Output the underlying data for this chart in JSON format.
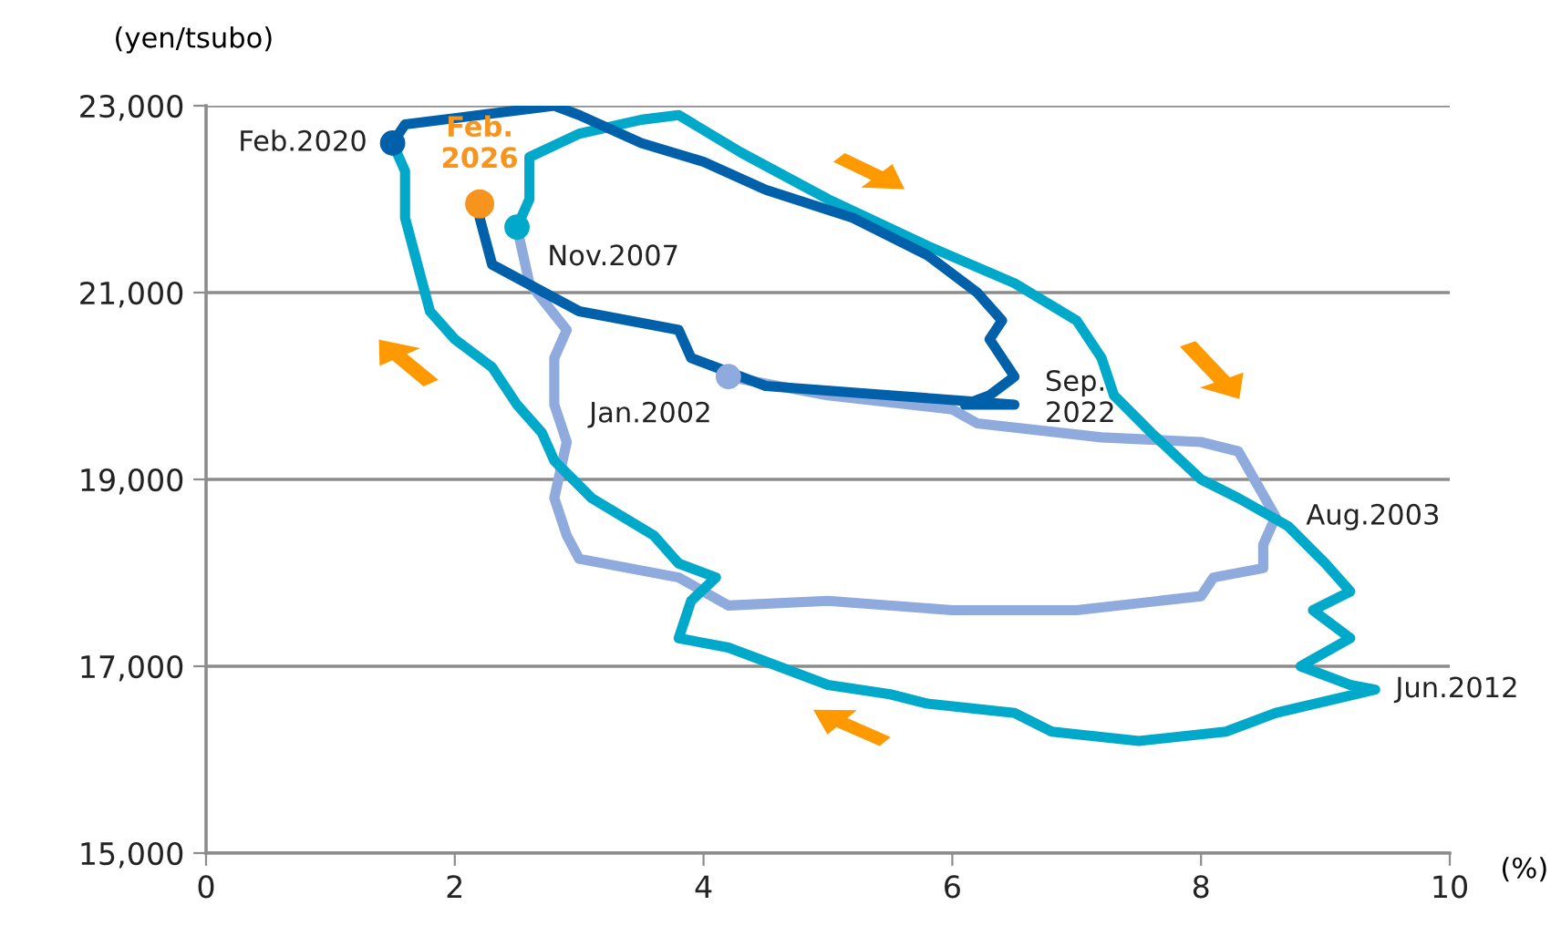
{
  "chart_data": {
    "type": "line",
    "xlabel": "(%)",
    "ylabel": "(yen/tsubo)",
    "xlim": [
      0,
      10
    ],
    "xticks": [
      0,
      2,
      4,
      6,
      8,
      10
    ],
    "ylim": [
      15000,
      23000
    ],
    "yticks": [
      {
        "value": 15000,
        "label": "15,000"
      },
      {
        "value": 17000,
        "label": "17,000"
      },
      {
        "value": 19000,
        "label": "19,000"
      },
      {
        "value": 21000,
        "label": "21,000"
      },
      {
        "value": 23000,
        "label": "23,000"
      }
    ],
    "grid": "y",
    "line_style": "solid",
    "series": [
      {
        "color": "#8faadc",
        "x": [
          4.2,
          5.0,
          6.0,
          6.2,
          7.2,
          8.0,
          8.3,
          8.6,
          8.5,
          8.5,
          8.1,
          8.0,
          7.0,
          6.0,
          5.0,
          4.2,
          3.8,
          3.0,
          2.9,
          2.8,
          2.9,
          2.8,
          2.8,
          2.9,
          2.6,
          2.5
        ],
        "values": [
          20100,
          19900,
          19750,
          19600,
          19450,
          19400,
          19300,
          18600,
          18300,
          18050,
          17950,
          17750,
          17600,
          17600,
          17700,
          17650,
          17950,
          18150,
          18400,
          18800,
          19400,
          19800,
          20300,
          20600,
          21100,
          21700
        ]
      },
      {
        "color": "#00a9c9",
        "x": [
          2.5,
          2.6,
          2.6,
          3.0,
          3.5,
          3.8,
          4.3,
          5.0,
          5.8,
          6.5,
          7.0,
          7.2,
          7.3,
          7.6,
          8.0,
          8.3,
          8.7,
          9.0,
          9.2,
          8.9,
          9.2,
          8.8,
          9.2,
          9.4,
          8.6,
          8.2,
          7.5,
          6.8,
          6.5,
          5.8,
          5.5,
          5.0,
          4.6,
          4.2,
          3.8,
          3.9,
          4.1,
          3.8,
          3.6,
          3.1,
          2.8,
          2.7,
          2.5,
          2.3,
          2.0,
          1.8,
          1.7,
          1.6,
          1.6,
          1.5
        ],
        "values": [
          21700,
          22000,
          22450,
          22700,
          22850,
          22900,
          22500,
          22000,
          21500,
          21100,
          20700,
          20300,
          19900,
          19500,
          19000,
          18800,
          18500,
          18100,
          17800,
          17600,
          17300,
          17000,
          16800,
          16750,
          16500,
          16300,
          16200,
          16300,
          16500,
          16600,
          16700,
          16800,
          17000,
          17200,
          17300,
          17700,
          17950,
          18100,
          18400,
          18800,
          19200,
          19500,
          19800,
          20200,
          20500,
          20800,
          21300,
          21800,
          22300,
          22600
        ]
      },
      {
        "color": "#0060aa",
        "x": [
          1.5,
          1.6,
          2.2,
          2.8,
          3.0,
          3.5,
          4.0,
          4.5,
          5.2,
          5.8,
          6.2,
          6.4,
          6.3,
          6.5,
          6.3,
          6.1,
          6.5,
          5.5,
          4.5,
          3.9,
          3.8,
          3.0,
          2.3,
          2.2
        ],
        "values": [
          22600,
          22800,
          22900,
          23000,
          22900,
          22600,
          22400,
          22100,
          21800,
          21400,
          21000,
          20700,
          20500,
          20100,
          19900,
          19800,
          19800,
          19900,
          20000,
          20300,
          20600,
          20800,
          21300,
          21800
        ]
      },
      {
        "type": "scatter",
        "marker": "circle",
        "color": "#f7941d",
        "x": [
          2.2
        ],
        "values": [
          21950
        ]
      }
    ],
    "annotations": [
      {
        "text": "Jan.2002",
        "x": 4.2,
        "y": 20100
      },
      {
        "text": "Aug.2003",
        "x": 8.6,
        "y": 18600
      },
      {
        "text": "Nov.2007",
        "x": 2.5,
        "y": 21700
      },
      {
        "text": "Jun.2012",
        "x": 9.4,
        "y": 16750
      },
      {
        "text": "Feb.2020",
        "x": 1.5,
        "y": 22600
      },
      {
        "text": "Sep.\n2022",
        "x": 6.5,
        "y": 20000
      },
      {
        "text": "Feb.\n2026",
        "x": 2.2,
        "y": 21950
      }
    ]
  }
}
